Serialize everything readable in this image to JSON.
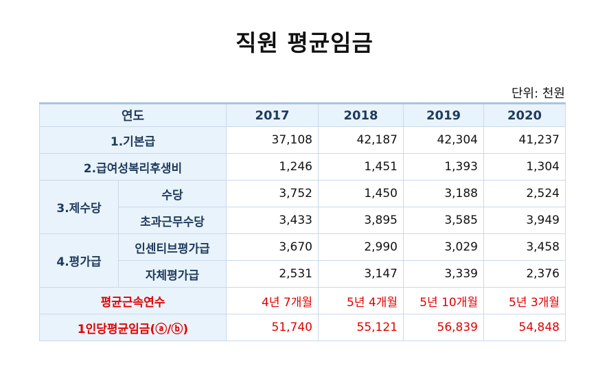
{
  "title": "직원 평균임금",
  "unit": "단위: 천원",
  "header": {
    "label": "연도",
    "years": [
      "2017",
      "2018",
      "2019",
      "2020"
    ]
  },
  "rows": {
    "basic": {
      "label": "1.기본급",
      "values": [
        "37,108",
        "42,187",
        "42,304",
        "41,237"
      ]
    },
    "welfare": {
      "label": "2.급여성복리후생비",
      "values": [
        "1,246",
        "1,451",
        "1,393",
        "1,304"
      ]
    },
    "allowance": {
      "label": "3.제수당",
      "sub": [
        {
          "label": "수당",
          "values": [
            "3,752",
            "1,450",
            "3,188",
            "2,524"
          ]
        },
        {
          "label": "초과근무수당",
          "values": [
            "3,433",
            "3,895",
            "3,585",
            "3,949"
          ]
        }
      ]
    },
    "evaluation": {
      "label": "4.평가급",
      "sub": [
        {
          "label": "인센티브평가급",
          "values": [
            "3,670",
            "2,990",
            "3,029",
            "3,458"
          ]
        },
        {
          "label": "자체평가급",
          "values": [
            "2,531",
            "3,147",
            "3,339",
            "2,376"
          ]
        }
      ]
    },
    "tenure": {
      "label": "평균근속연수",
      "values": [
        "4년 7개월",
        "5년 4개월",
        "5년 10개월",
        "5년 3개월"
      ]
    },
    "avg_wage": {
      "label": "1인당평균임금(ⓐ/ⓑ)",
      "values": [
        "51,740",
        "55,121",
        "56,839",
        "54,848"
      ]
    }
  },
  "colors": {
    "header_bg": "#e9f3fb",
    "label_text": "#1f3a5c",
    "highlight": "#e00000",
    "border": "#c9d9e8"
  }
}
